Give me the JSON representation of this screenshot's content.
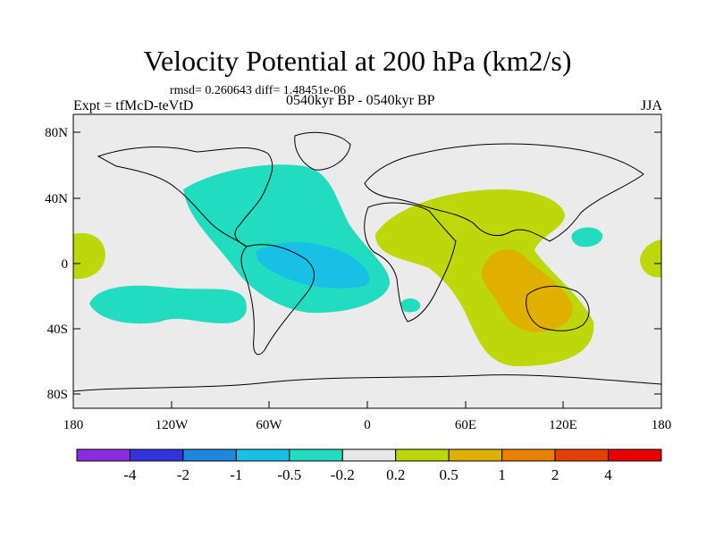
{
  "title": "Velocity Potential at 200 hPa (km2/s)",
  "stats": "rmsd= 0.260643 diff= 1.48451e-06",
  "expt": "Expt = tfMcD-teVtD",
  "period": "0540kyr BP - 0540kyr BP",
  "season": "JJA",
  "lat_ticks": [
    "80N",
    "40N",
    "0",
    "40S",
    "80S"
  ],
  "lon_ticks": [
    "180",
    "120W",
    "60W",
    "0",
    "60E",
    "120E",
    "180"
  ],
  "colorbar": {
    "colors": [
      "#8b2be2",
      "#3333dd",
      "#1e88e0",
      "#18c0e6",
      "#22dcc0",
      "#e8e8e8",
      "#bcd80a",
      "#e0b000",
      "#ea8000",
      "#e64000",
      "#e60000"
    ],
    "labels": [
      "-4",
      "-2",
      "-1",
      "-0.5",
      "-0.2",
      "0.2",
      "0.5",
      "1",
      "2",
      "4"
    ]
  },
  "colors": {
    "land_bg": "#ebebeb",
    "neg_light": "#22dcc0",
    "neg_mid": "#18c0e6",
    "pos_light": "#bcd80a",
    "pos_mid": "#e0b000"
  }
}
